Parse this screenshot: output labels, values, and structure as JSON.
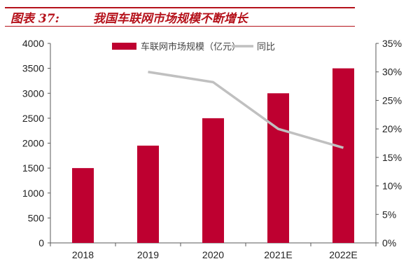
{
  "figure": {
    "label": "图表 37:",
    "title": "我国车联网市场规模不断增长"
  },
  "colors": {
    "bar": "#be0030",
    "line": "#c0c0c0",
    "title": "#b5121b"
  },
  "chart_data": {
    "type": "bar+line",
    "title": "我国车联网市场规模不断增长",
    "categories": [
      "2018",
      "2019",
      "2020",
      "2021E",
      "2022E"
    ],
    "series": [
      {
        "name": "车联网市场规模（亿元）",
        "type": "bar",
        "axis": "left",
        "values": [
          1500,
          1950,
          2500,
          3000,
          3500
        ]
      },
      {
        "name": "同比",
        "type": "line",
        "axis": "right",
        "values": [
          null,
          30.0,
          28.2,
          20.0,
          16.7
        ]
      }
    ],
    "left_axis": {
      "ylim": [
        0,
        4000
      ],
      "ticks": [
        "0",
        "500",
        "1000",
        "1500",
        "2000",
        "2500",
        "3000",
        "3500",
        "4000"
      ]
    },
    "right_axis": {
      "ylim": [
        0,
        35
      ],
      "ticks": [
        "0%",
        "5%",
        "10%",
        "15%",
        "20%",
        "25%",
        "30%",
        "35%"
      ]
    },
    "grid": false,
    "legend": "top"
  }
}
